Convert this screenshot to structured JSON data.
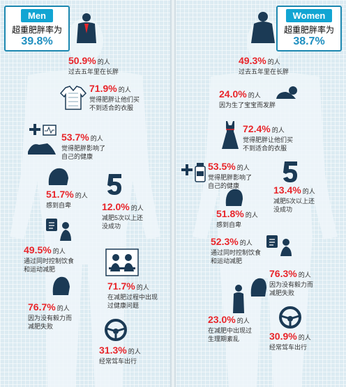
{
  "men": {
    "tag": "Men",
    "title": "超重肥胖率为",
    "rate": "39.8%",
    "stats": [
      {
        "num": "50.9%",
        "unit": "的人",
        "desc": [
          "过去五年里在长胖"
        ]
      },
      {
        "num": "71.9%",
        "unit": "的人",
        "desc": [
          "觉得肥胖让他们买",
          "不到适合的衣服"
        ]
      },
      {
        "num": "53.7%",
        "unit": "的人",
        "desc": [
          "觉得肥胖影响了",
          "自己的健康"
        ]
      },
      {
        "num": "51.7%",
        "unit": "的人",
        "desc": [
          "感到自卑"
        ]
      },
      {
        "num": "12.0%",
        "unit": "的人",
        "desc": [
          "减肥5次以上还",
          "没成功"
        ]
      },
      {
        "num": "49.5%",
        "unit": "的人",
        "desc": [
          "通过同时控制饮食",
          "和运动减肥"
        ]
      },
      {
        "num": "71.7%",
        "unit": "的人",
        "desc": [
          "在减肥过程中出现",
          "过健康问题"
        ]
      },
      {
        "num": "76.7%",
        "unit": "的人",
        "desc": [
          "因为没有毅力而",
          "减肥失败"
        ]
      },
      {
        "num": "31.3%",
        "unit": "的人",
        "desc": [
          "经常驾车出行"
        ]
      }
    ]
  },
  "women": {
    "tag": "Women",
    "title": "超重肥胖率为",
    "rate": "38.7%",
    "stats": [
      {
        "num": "49.3%",
        "unit": "的人",
        "desc": [
          "过去五年里在长胖"
        ]
      },
      {
        "num": "24.0%",
        "unit": "的人",
        "desc": [
          "因为生了宝宝而发胖"
        ]
      },
      {
        "num": "72.4%",
        "unit": "的人",
        "desc": [
          "觉得肥胖让他们买",
          "不到适合的衣服"
        ]
      },
      {
        "num": "53.5%",
        "unit": "的人",
        "desc": [
          "觉得肥胖影响了",
          "自己的健康"
        ]
      },
      {
        "num": "13.4%",
        "unit": "的人",
        "desc": [
          "减肥5次以上还",
          "没成功"
        ]
      },
      {
        "num": "51.8%",
        "unit": "的人",
        "desc": [
          "感到自卑"
        ]
      },
      {
        "num": "52.3%",
        "unit": "的人",
        "desc": [
          "通过同时控制饮食",
          "和运动减肥"
        ]
      },
      {
        "num": "76.3%",
        "unit": "的人",
        "desc": [
          "因为没有毅力而",
          "减肥失败"
        ]
      },
      {
        "num": "23.0%",
        "unit": "的人",
        "desc": [
          "在减肥中出现过",
          "生理期紊乱"
        ]
      },
      {
        "num": "30.9%",
        "unit": "的人",
        "desc": [
          "经常驾车出行"
        ]
      }
    ]
  },
  "colors": {
    "accent_red": "#e8252a",
    "accent_blue": "#12a5d3",
    "icon_navy": "#1b3a55"
  }
}
